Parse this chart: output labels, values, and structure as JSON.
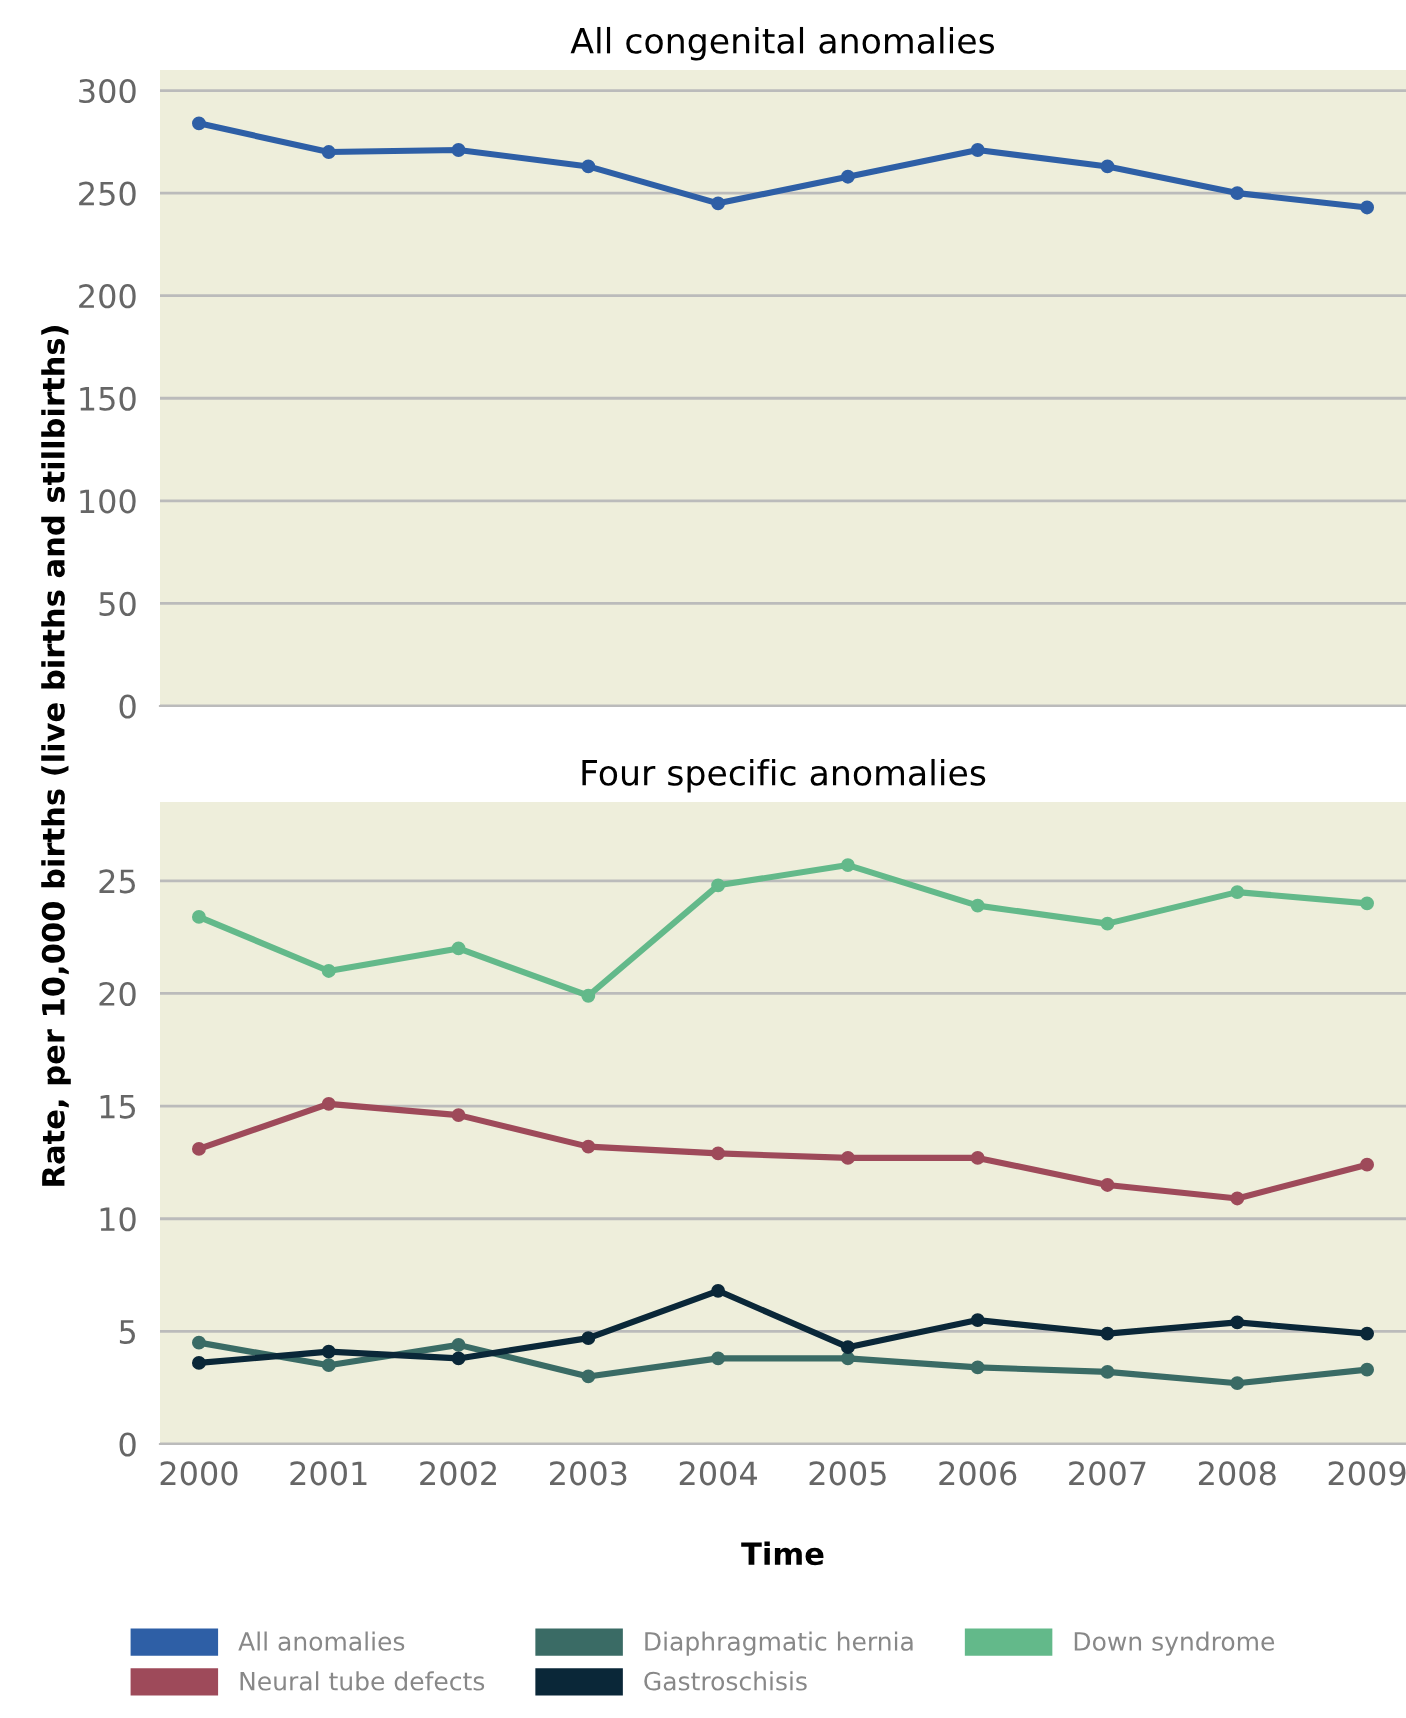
{
  "chart_data": [
    {
      "type": "line",
      "title": "All congenital anomalies",
      "ylabel": "Rate, per 10,000 births (live births and stillbirths)",
      "categories": [
        "2000",
        "2001",
        "2002",
        "2003",
        "2004",
        "2005",
        "2006",
        "2007",
        "2008",
        "2009"
      ],
      "tick_labels": "y",
      "ylim": [
        0,
        310
      ],
      "yticks": [
        0,
        50,
        100,
        150,
        200,
        250,
        300
      ],
      "grid": "y",
      "marker": "circle",
      "legend": "bottom",
      "series": [
        {
          "name": "All anomalies",
          "color": "#2e5fa6",
          "values": [
            284,
            270,
            271,
            263,
            245,
            258,
            271,
            263,
            250,
            243
          ]
        }
      ]
    },
    {
      "type": "line",
      "title": "Four specific anomalies",
      "xlabel": "Time",
      "categories": [
        "2000",
        "2001",
        "2002",
        "2003",
        "2004",
        "2005",
        "2006",
        "2007",
        "2008",
        "2009"
      ],
      "ylim": [
        0,
        28.5
      ],
      "yticks": [
        0,
        5,
        10,
        15,
        20,
        25
      ],
      "grid": "y",
      "marker": "circle",
      "legend": "bottom",
      "series": [
        {
          "name": "Neural tube defects",
          "color": "#9e4a5a",
          "values": [
            13.1,
            15.1,
            14.6,
            13.2,
            12.9,
            12.7,
            12.7,
            11.5,
            10.9,
            12.4
          ]
        },
        {
          "name": "Diaphragmatic hernia",
          "color": "#3a6b65",
          "values": [
            4.5,
            3.5,
            4.4,
            3.0,
            3.8,
            3.8,
            3.4,
            3.2,
            2.7,
            3.3
          ]
        },
        {
          "name": "Gastroschisis",
          "color": "#0a2738",
          "values": [
            3.6,
            4.1,
            3.8,
            4.7,
            6.8,
            4.3,
            5.5,
            4.9,
            5.4,
            4.9
          ]
        },
        {
          "name": "Down syndrome",
          "color": "#63b98a",
          "values": [
            23.4,
            21.0,
            22.0,
            19.9,
            24.8,
            25.7,
            23.9,
            23.1,
            24.5,
            24.0
          ]
        }
      ]
    }
  ]
}
